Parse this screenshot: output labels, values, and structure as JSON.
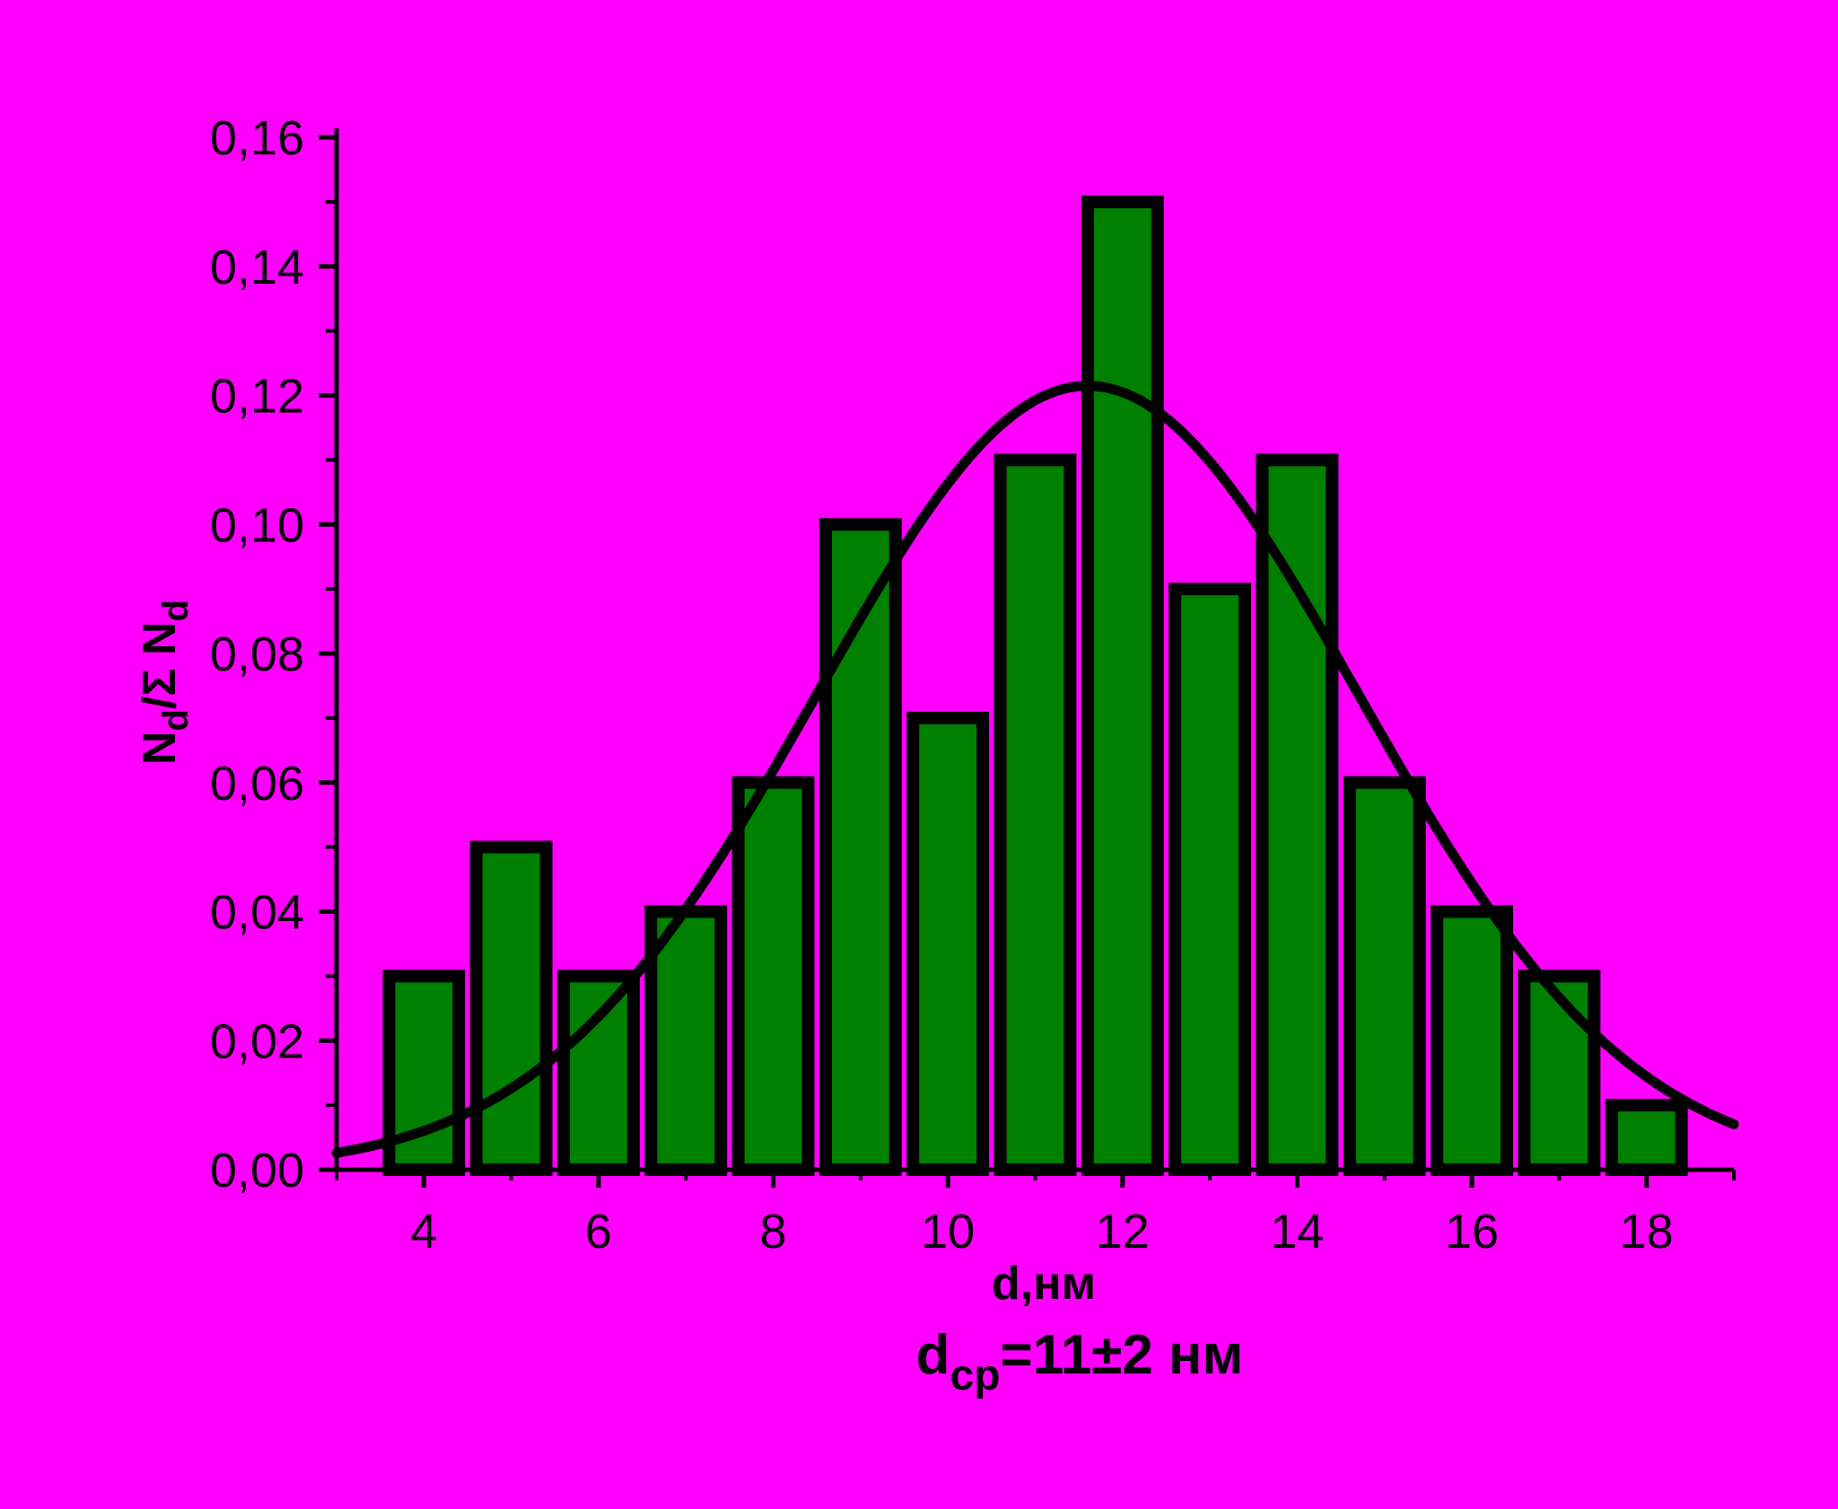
{
  "chart_data": {
    "type": "bar",
    "title": "",
    "xlabel": "d,нм",
    "ylabel": {
      "base": "N",
      "sub1": "d",
      "mid": "/Σ N",
      "sub2": "d"
    },
    "xlim": [
      3,
      19
    ],
    "ylim": [
      0,
      0.16
    ],
    "x_ticks": [
      4,
      6,
      8,
      10,
      12,
      14,
      16,
      18
    ],
    "x_tick_labels": [
      "4",
      "6",
      "8",
      "10",
      "12",
      "14",
      "16",
      "18"
    ],
    "y_ticks": [
      0,
      0.02,
      0.04,
      0.06,
      0.08,
      0.1,
      0.12,
      0.14,
      0.16
    ],
    "y_tick_labels": [
      "0,00",
      "0,02",
      "0,04",
      "0,06",
      "0,08",
      "0,10",
      "0,12",
      "0,14",
      "0,16"
    ],
    "bar_width": 0.8,
    "bars": {
      "x": [
        4,
        5,
        6,
        7,
        8,
        9,
        10,
        11,
        12,
        13,
        14,
        15,
        16,
        17,
        18
      ],
      "values": [
        0.03,
        0.05,
        0.03,
        0.04,
        0.06,
        0.1,
        0.07,
        0.11,
        0.15,
        0.09,
        0.11,
        0.06,
        0.04,
        0.03,
        0.01
      ]
    },
    "fit_curve": {
      "type": "gaussian",
      "peak_x": 11.6,
      "peak_y": 0.1215,
      "sigma": 3.1
    },
    "annotation": {
      "base": "d",
      "sub": "ср",
      "rest": "=11±2 нм"
    },
    "colors": {
      "background": "#ff00ff",
      "bar_fill": "#008000",
      "bar_edge": "#000000",
      "curve": "#000000",
      "axis": "#000000"
    },
    "grid": false,
    "legend": "none"
  }
}
